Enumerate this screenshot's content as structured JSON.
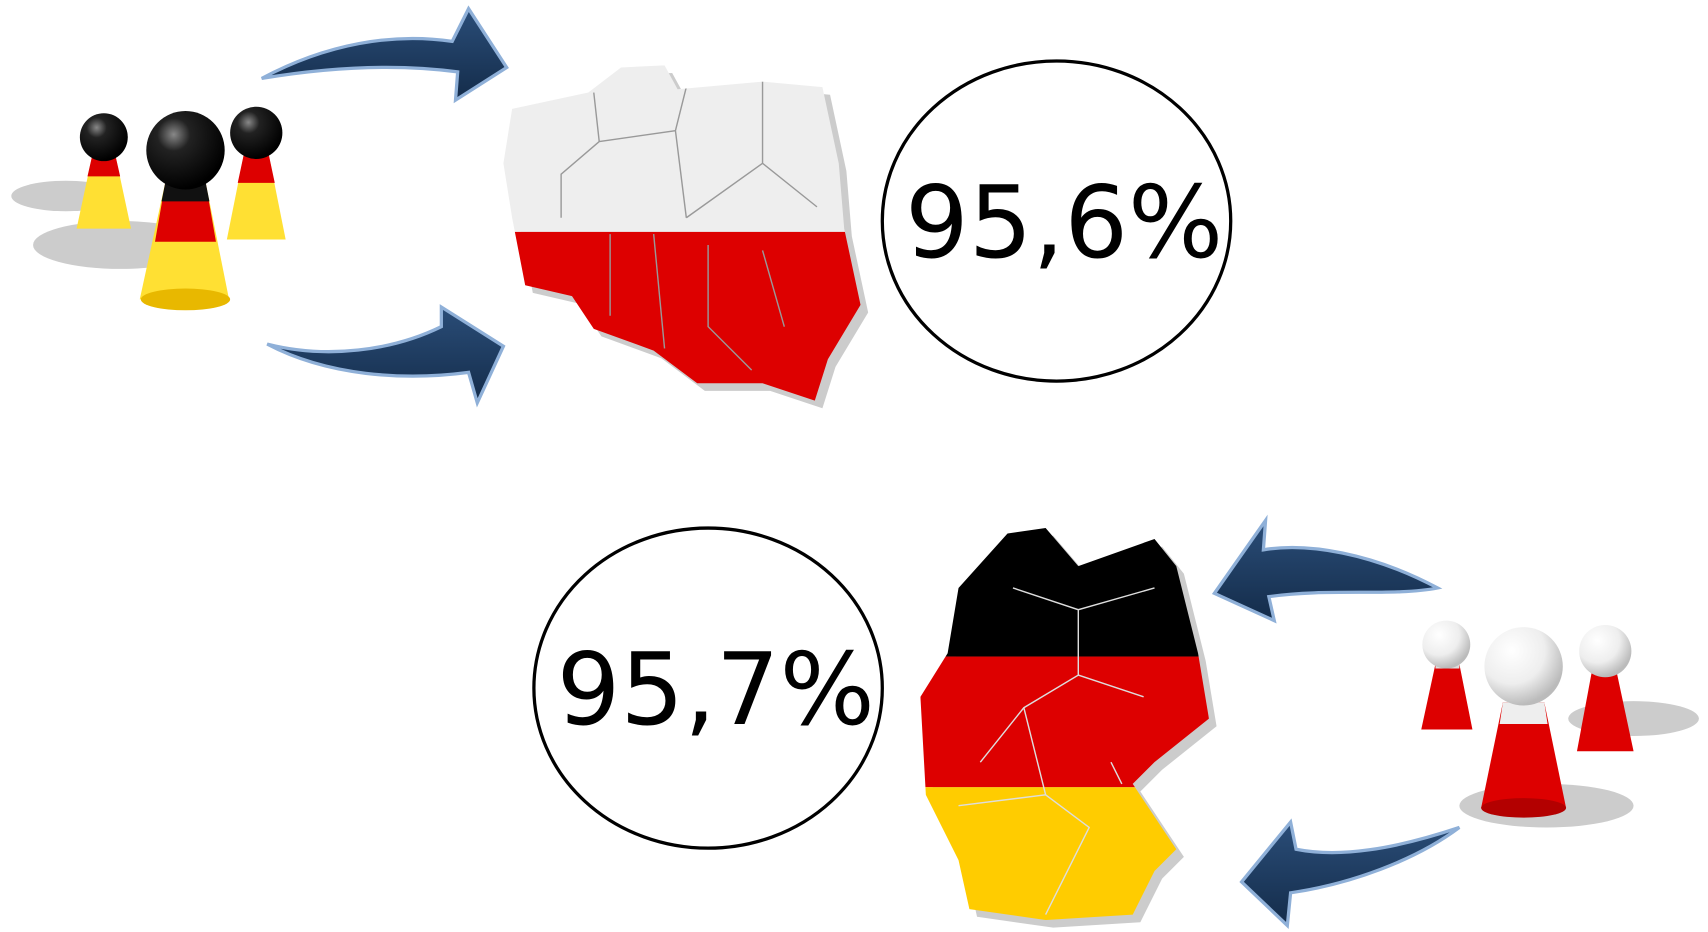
{
  "items": [
    {
      "label": "95,6%"
    },
    {
      "label": "95,7%"
    }
  ]
}
